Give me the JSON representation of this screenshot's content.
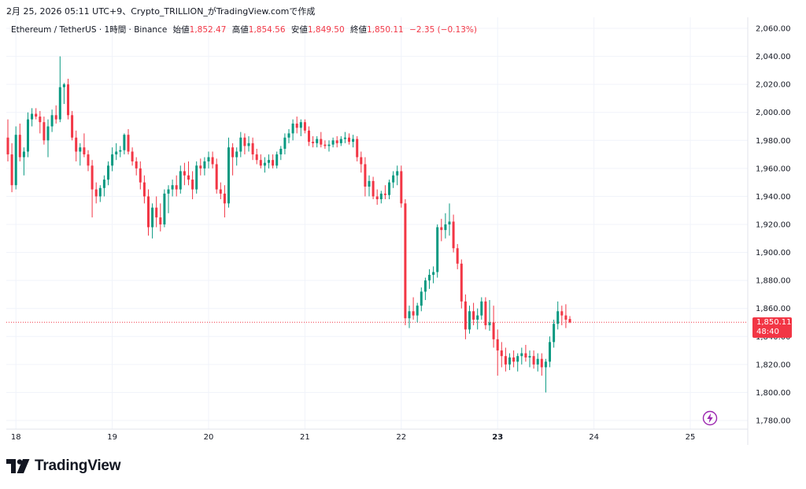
{
  "caption": "2月 25, 2026 05:11 UTC+9、Crypto_TRILLION_がTradingView.comで作成",
  "legend": {
    "symbol": "Ethereum / TetherUS · 1時間 · Binance",
    "open_label": "始値",
    "open": "1,852.47",
    "high_label": "高値",
    "high": "1,854.56",
    "low_label": "安値",
    "low": "1,849.50",
    "close_label": "終値",
    "close": "1,850.11",
    "change": "−2.35 (−0.13%)"
  },
  "price_tag": {
    "price": "1,850.11",
    "countdown": "48:40"
  },
  "brand": "TradingView",
  "colors": {
    "up": "#089981",
    "down": "#f23645",
    "grid": "#f0f3fa",
    "text": "#131722"
  },
  "icons": [
    "tradingview-logo-icon",
    "lightning-bolt-icon"
  ],
  "chart_data": {
    "type": "candlestick",
    "ylim": [
      1770,
      2070
    ],
    "y_ticks": [
      "2,060.00",
      "2,040.00",
      "2,020.00",
      "2,000.00",
      "1,980.00",
      "1,960.00",
      "1,940.00",
      "1,920.00",
      "1,900.00",
      "1,880.00",
      "1,860.00",
      "1,840.00",
      "1,820.00",
      "1,800.00",
      "1,780.00"
    ],
    "y_tick_values": [
      2060,
      2040,
      2020,
      2000,
      1980,
      1960,
      1940,
      1920,
      1900,
      1880,
      1860,
      1840,
      1820,
      1800,
      1780
    ],
    "x_ticks": [
      "18",
      "19",
      "20",
      "21",
      "22",
      "23",
      "24",
      "25"
    ],
    "x_tick_bold": [
      false,
      false,
      false,
      false,
      false,
      true,
      false,
      false
    ],
    "x_tick_bar_index": [
      2,
      26,
      50,
      74,
      98,
      122,
      146,
      170
    ],
    "current_price": 1850.11,
    "ohlc": [
      [
        1982,
        1995,
        1965,
        1970
      ],
      [
        1970,
        1978,
        1943,
        1948
      ],
      [
        1948,
        1990,
        1945,
        1984
      ],
      [
        1984,
        1992,
        1965,
        1968
      ],
      [
        1968,
        1975,
        1955,
        1972
      ],
      [
        1972,
        2000,
        1968,
        1995
      ],
      [
        1995,
        2003,
        1990,
        1999
      ],
      [
        1999,
        2003,
        1995,
        1997
      ],
      [
        1997,
        2001,
        1985,
        1993
      ],
      [
        1993,
        1997,
        1977,
        1980
      ],
      [
        1980,
        1995,
        1968,
        1990
      ],
      [
        1990,
        2002,
        1986,
        1998
      ],
      [
        1998,
        2005,
        1992,
        1995
      ],
      [
        1995,
        2040,
        1993,
        2018
      ],
      [
        2018,
        2021,
        2006,
        2020
      ],
      [
        2020,
        2024,
        1995,
        1998
      ],
      [
        1998,
        2001,
        1980,
        1982
      ],
      [
        1982,
        1987,
        1965,
        1972
      ],
      [
        1972,
        1978,
        1962,
        1975
      ],
      [
        1975,
        1985,
        1968,
        1970
      ],
      [
        1970,
        1973,
        1958,
        1962
      ],
      [
        1962,
        1966,
        1925,
        1945
      ],
      [
        1945,
        1950,
        1935,
        1940
      ],
      [
        1940,
        1948,
        1936,
        1946
      ],
      [
        1946,
        1955,
        1940,
        1952
      ],
      [
        1952,
        1965,
        1948,
        1962
      ],
      [
        1962,
        1975,
        1958,
        1970
      ],
      [
        1970,
        1978,
        1966,
        1972
      ],
      [
        1972,
        1976,
        1968,
        1973
      ],
      [
        1973,
        1985,
        1970,
        1984
      ],
      [
        1984,
        1988,
        1970,
        1972
      ],
      [
        1972,
        1975,
        1962,
        1965
      ],
      [
        1965,
        1968,
        1955,
        1960
      ],
      [
        1960,
        1965,
        1945,
        1950
      ],
      [
        1950,
        1955,
        1935,
        1940
      ],
      [
        1940,
        1945,
        1912,
        1918
      ],
      [
        1918,
        1935,
        1910,
        1932
      ],
      [
        1932,
        1940,
        1918,
        1925
      ],
      [
        1925,
        1935,
        1915,
        1920
      ],
      [
        1920,
        1945,
        1918,
        1942
      ],
      [
        1942,
        1948,
        1928,
        1945
      ],
      [
        1945,
        1952,
        1940,
        1948
      ],
      [
        1948,
        1955,
        1940,
        1945
      ],
      [
        1945,
        1962,
        1942,
        1958
      ],
      [
        1958,
        1964,
        1948,
        1955
      ],
      [
        1955,
        1965,
        1948,
        1952
      ],
      [
        1952,
        1958,
        1938,
        1945
      ],
      [
        1945,
        1965,
        1942,
        1962
      ],
      [
        1962,
        1967,
        1955,
        1960
      ],
      [
        1960,
        1968,
        1955,
        1965
      ],
      [
        1965,
        1972,
        1960,
        1968
      ],
      [
        1968,
        1972,
        1960,
        1963
      ],
      [
        1963,
        1967,
        1942,
        1945
      ],
      [
        1945,
        1950,
        1938,
        1942
      ],
      [
        1942,
        1948,
        1925,
        1935
      ],
      [
        1935,
        1982,
        1932,
        1975
      ],
      [
        1975,
        1978,
        1955,
        1968
      ],
      [
        1968,
        1975,
        1962,
        1972
      ],
      [
        1972,
        1986,
        1968,
        1982
      ],
      [
        1982,
        1985,
        1970,
        1976
      ],
      [
        1976,
        1983,
        1972,
        1978
      ],
      [
        1978,
        1982,
        1966,
        1970
      ],
      [
        1970,
        1974,
        1963,
        1966
      ],
      [
        1966,
        1970,
        1960,
        1962
      ],
      [
        1962,
        1968,
        1957,
        1964
      ],
      [
        1964,
        1970,
        1960,
        1966
      ],
      [
        1966,
        1970,
        1960,
        1962
      ],
      [
        1962,
        1972,
        1960,
        1970
      ],
      [
        1970,
        1976,
        1966,
        1974
      ],
      [
        1974,
        1985,
        1970,
        1982
      ],
      [
        1982,
        1988,
        1978,
        1985
      ],
      [
        1985,
        1995,
        1980,
        1992
      ],
      [
        1992,
        1997,
        1985,
        1989
      ],
      [
        1989,
        1995,
        1983,
        1993
      ],
      [
        1993,
        1995,
        1985,
        1987
      ],
      [
        1987,
        1990,
        1976,
        1979
      ],
      [
        1979,
        1983,
        1975,
        1978
      ],
      [
        1978,
        1983,
        1975,
        1981
      ],
      [
        1981,
        1986,
        1975,
        1977
      ],
      [
        1977,
        1980,
        1974,
        1976
      ],
      [
        1976,
        1980,
        1972,
        1977
      ],
      [
        1977,
        1982,
        1975,
        1980
      ],
      [
        1980,
        1983,
        1975,
        1978
      ],
      [
        1978,
        1983,
        1976,
        1981
      ],
      [
        1981,
        1986,
        1978,
        1982
      ],
      [
        1982,
        1985,
        1977,
        1979
      ],
      [
        1979,
        1984,
        1975,
        1981
      ],
      [
        1981,
        1983,
        1965,
        1968
      ],
      [
        1968,
        1972,
        1957,
        1963
      ],
      [
        1963,
        1968,
        1940,
        1947
      ],
      [
        1947,
        1955,
        1940,
        1951
      ],
      [
        1951,
        1954,
        1938,
        1940
      ],
      [
        1940,
        1945,
        1934,
        1938
      ],
      [
        1938,
        1944,
        1935,
        1942
      ],
      [
        1942,
        1948,
        1938,
        1941
      ],
      [
        1941,
        1952,
        1938,
        1950
      ],
      [
        1950,
        1958,
        1946,
        1955
      ],
      [
        1955,
        1962,
        1948,
        1958
      ],
      [
        1958,
        1962,
        1932,
        1935
      ],
      [
        1935,
        1938,
        1848,
        1853
      ],
      [
        1853,
        1862,
        1846,
        1858
      ],
      [
        1858,
        1868,
        1852,
        1855
      ],
      [
        1855,
        1864,
        1850,
        1862
      ],
      [
        1862,
        1875,
        1858,
        1872
      ],
      [
        1872,
        1882,
        1866,
        1880
      ],
      [
        1880,
        1888,
        1874,
        1884
      ],
      [
        1884,
        1890,
        1878,
        1886
      ],
      [
        1886,
        1920,
        1882,
        1918
      ],
      [
        1918,
        1924,
        1908,
        1916
      ],
      [
        1916,
        1928,
        1910,
        1920
      ],
      [
        1920,
        1935,
        1912,
        1922
      ],
      [
        1922,
        1927,
        1900,
        1903
      ],
      [
        1903,
        1906,
        1888,
        1892
      ],
      [
        1892,
        1895,
        1860,
        1865
      ],
      [
        1865,
        1870,
        1838,
        1845
      ],
      [
        1845,
        1862,
        1842,
        1858
      ],
      [
        1858,
        1864,
        1848,
        1852
      ],
      [
        1852,
        1860,
        1845,
        1855
      ],
      [
        1855,
        1868,
        1852,
        1865
      ],
      [
        1865,
        1868,
        1845,
        1848
      ],
      [
        1848,
        1866,
        1844,
        1850
      ],
      [
        1850,
        1862,
        1832,
        1838
      ],
      [
        1838,
        1845,
        1812,
        1830
      ],
      [
        1830,
        1836,
        1818,
        1826
      ],
      [
        1826,
        1832,
        1815,
        1820
      ],
      [
        1820,
        1828,
        1816,
        1825
      ],
      [
        1825,
        1830,
        1818,
        1822
      ],
      [
        1822,
        1828,
        1815,
        1826
      ],
      [
        1826,
        1832,
        1820,
        1828
      ],
      [
        1828,
        1834,
        1822,
        1825
      ],
      [
        1825,
        1830,
        1818,
        1826
      ],
      [
        1826,
        1830,
        1817,
        1820
      ],
      [
        1820,
        1828,
        1815,
        1824
      ],
      [
        1824,
        1828,
        1812,
        1818
      ],
      [
        1818,
        1824,
        1800,
        1822
      ],
      [
        1822,
        1840,
        1818,
        1836
      ],
      [
        1836,
        1852,
        1832,
        1849
      ],
      [
        1849,
        1865,
        1845,
        1858
      ],
      [
        1858,
        1862,
        1848,
        1855
      ],
      [
        1855,
        1863,
        1846,
        1852
      ],
      [
        1852.47,
        1854.56,
        1849.5,
        1850.11
      ]
    ]
  }
}
